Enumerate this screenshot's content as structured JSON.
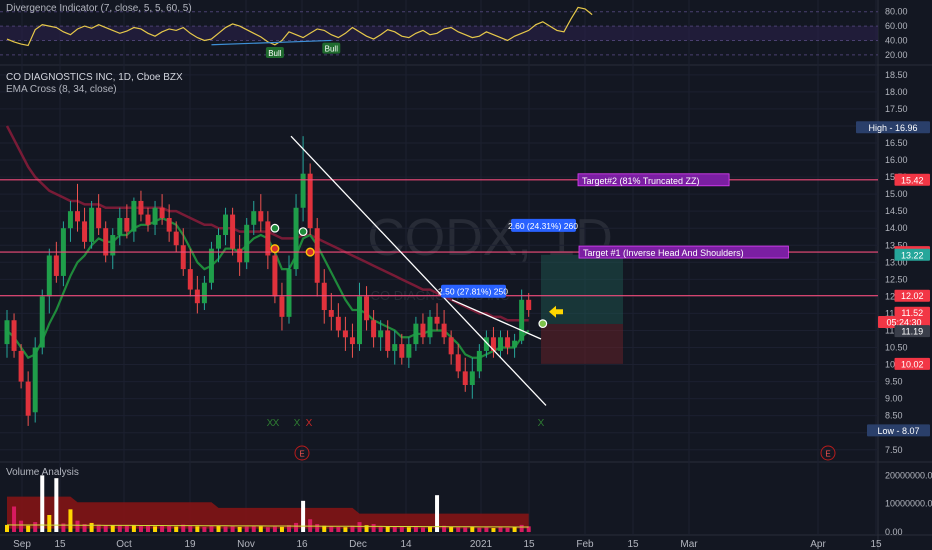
{
  "header": {
    "symbol_line": "CO DIAGNOSTICS INC, 1D, Cboe BZX",
    "ema_line": "EMA Cross (8, 34, close)"
  },
  "watermark": "CODX, 1D",
  "watermark_sub": "CO DIAGNOSTICS INC",
  "chart_data": [
    {
      "type": "line",
      "title": "Divergence Indicator (7, close, 5, 5, 60, 5)",
      "y_ticks": [
        "80.00",
        "60.00",
        "40.00",
        "20.00"
      ],
      "ylim": [
        10,
        88
      ],
      "series": [
        {
          "values": [
            42,
            38,
            35,
            33,
            55,
            62,
            60,
            58,
            52,
            48,
            56,
            60,
            57,
            62,
            58,
            54,
            50,
            53,
            58,
            56,
            50,
            46,
            52,
            56,
            54,
            58,
            50,
            44,
            40,
            42,
            50,
            58,
            63,
            60,
            55,
            50,
            45,
            38,
            34,
            40,
            52,
            48,
            44,
            50,
            56,
            54,
            48,
            44,
            50,
            58,
            52,
            46,
            42,
            48,
            55,
            52,
            46,
            44,
            50,
            54,
            48,
            50,
            56,
            58,
            52,
            48,
            44,
            46,
            52,
            48,
            44,
            40,
            46,
            50,
            54,
            62,
            66,
            60,
            54,
            52,
            70,
            86,
            84,
            76
          ]
        }
      ],
      "bull_labels": [
        "Bull",
        "Bull"
      ]
    },
    {
      "type": "candlestick",
      "x_ticks": [
        "Sep",
        "15",
        "Oct",
        "19",
        "Nov",
        "16",
        "Dec",
        "14",
        "2021",
        "15",
        "Feb",
        "15",
        "Mar",
        "Apr",
        "15"
      ],
      "y_ticks": [
        "18.50",
        "18.00",
        "17.50",
        "17.00",
        "16.50",
        "16.00",
        "15.50",
        "15.00",
        "14.50",
        "14.00",
        "13.50",
        "13.00",
        "12.50",
        "12.00",
        "11.50",
        "11.00",
        "10.50",
        "10.00",
        "9.50",
        "9.00",
        "8.50",
        "8.00",
        "7.50"
      ],
      "ylim": [
        7.2,
        18.7
      ],
      "ohlc": [
        [
          10.6,
          11.6,
          10.2,
          11.3
        ],
        [
          11.3,
          11.5,
          10.2,
          10.4
        ],
        [
          10.4,
          10.6,
          9.3,
          9.5
        ],
        [
          9.5,
          9.8,
          8.2,
          8.5
        ],
        [
          8.6,
          10.8,
          8.3,
          10.5
        ],
        [
          10.5,
          12.2,
          10.3,
          12.0
        ],
        [
          12.0,
          13.4,
          11.5,
          13.2
        ],
        [
          13.2,
          13.6,
          12.4,
          12.6
        ],
        [
          12.6,
          14.2,
          12.3,
          14.0
        ],
        [
          14.0,
          14.8,
          13.6,
          14.5
        ],
        [
          14.5,
          15.3,
          13.9,
          14.2
        ],
        [
          14.2,
          14.6,
          13.4,
          13.6
        ],
        [
          13.6,
          14.8,
          13.4,
          14.6
        ],
        [
          14.6,
          15.0,
          13.8,
          14.0
        ],
        [
          14.0,
          14.2,
          13.0,
          13.2
        ],
        [
          13.2,
          14.0,
          12.8,
          13.8
        ],
        [
          13.8,
          14.6,
          13.5,
          14.3
        ],
        [
          14.3,
          14.7,
          13.7,
          13.9
        ],
        [
          13.9,
          14.9,
          13.6,
          14.8
        ],
        [
          14.8,
          15.1,
          14.2,
          14.4
        ],
        [
          14.4,
          14.6,
          13.9,
          14.1
        ],
        [
          14.1,
          14.8,
          13.8,
          14.6
        ],
        [
          14.6,
          15.0,
          14.1,
          14.3
        ],
        [
          14.3,
          14.7,
          13.6,
          13.9
        ],
        [
          13.9,
          14.2,
          13.3,
          13.5
        ],
        [
          13.5,
          14.0,
          12.6,
          12.8
        ],
        [
          12.8,
          13.4,
          12.0,
          12.2
        ],
        [
          12.2,
          12.6,
          11.5,
          11.8
        ],
        [
          11.8,
          12.6,
          11.6,
          12.4
        ],
        [
          12.4,
          13.6,
          12.2,
          13.4
        ],
        [
          13.4,
          14.0,
          13.0,
          13.8
        ],
        [
          13.8,
          14.6,
          13.5,
          14.4
        ],
        [
          14.4,
          14.6,
          13.2,
          13.4
        ],
        [
          13.4,
          13.8,
          12.6,
          13.0
        ],
        [
          13.0,
          14.3,
          12.8,
          14.1
        ],
        [
          14.1,
          14.8,
          13.8,
          14.5
        ],
        [
          14.5,
          15.0,
          13.9,
          14.2
        ],
        [
          14.2,
          14.5,
          12.8,
          13.2
        ],
        [
          13.2,
          13.5,
          11.8,
          12.0
        ],
        [
          12.0,
          12.4,
          11.0,
          11.4
        ],
        [
          11.4,
          13.2,
          11.2,
          12.8
        ],
        [
          12.8,
          15.0,
          12.6,
          14.6
        ],
        [
          14.6,
          16.7,
          14.2,
          15.6
        ],
        [
          15.6,
          15.9,
          13.8,
          14.0
        ],
        [
          14.0,
          14.3,
          12.0,
          12.4
        ],
        [
          12.4,
          12.8,
          11.2,
          11.6
        ],
        [
          11.6,
          12.1,
          11.0,
          11.4
        ],
        [
          11.4,
          11.8,
          10.8,
          11.0
        ],
        [
          11.0,
          11.4,
          10.4,
          10.8
        ],
        [
          10.8,
          11.2,
          10.2,
          10.6
        ],
        [
          10.6,
          12.4,
          10.4,
          12.0
        ],
        [
          12.0,
          12.3,
          11.0,
          11.3
        ],
        [
          11.3,
          11.6,
          10.5,
          10.8
        ],
        [
          10.8,
          11.3,
          10.4,
          11.0
        ],
        [
          11.0,
          11.3,
          10.2,
          10.4
        ],
        [
          10.4,
          11.0,
          10.0,
          10.6
        ],
        [
          10.6,
          10.9,
          10.0,
          10.2
        ],
        [
          10.2,
          10.8,
          9.9,
          10.6
        ],
        [
          10.6,
          11.4,
          10.4,
          11.2
        ],
        [
          11.2,
          11.5,
          10.6,
          10.8
        ],
        [
          10.8,
          11.6,
          10.6,
          11.4
        ],
        [
          11.4,
          11.8,
          11.0,
          11.2
        ],
        [
          11.2,
          11.6,
          10.6,
          10.8
        ],
        [
          10.8,
          11.0,
          10.0,
          10.3
        ],
        [
          10.3,
          10.6,
          9.6,
          9.8
        ],
        [
          9.8,
          10.2,
          9.2,
          9.4
        ],
        [
          9.4,
          10.2,
          9.0,
          9.8
        ],
        [
          9.8,
          10.6,
          9.6,
          10.4
        ],
        [
          10.4,
          11.0,
          10.2,
          10.8
        ],
        [
          10.8,
          11.1,
          10.2,
          10.4
        ],
        [
          10.4,
          11.0,
          10.2,
          10.8
        ],
        [
          10.8,
          11.0,
          10.3,
          10.5
        ],
        [
          10.5,
          10.9,
          10.2,
          10.7
        ],
        [
          10.7,
          12.2,
          10.6,
          11.9
        ],
        [
          11.9,
          12.1,
          11.4,
          11.6
        ]
      ],
      "ema_fast": [
        11.0,
        10.8,
        10.5,
        10.2,
        10.3,
        10.7,
        11.2,
        11.6,
        12.1,
        12.6,
        13.0,
        13.2,
        13.5,
        13.7,
        13.6,
        13.6,
        13.8,
        13.8,
        14.0,
        14.1,
        14.1,
        14.2,
        14.3,
        14.2,
        14.1,
        13.8,
        13.4,
        13.0,
        12.8,
        12.9,
        13.1,
        13.4,
        13.4,
        13.3,
        13.5,
        13.7,
        13.8,
        13.7,
        13.3,
        12.8,
        12.8,
        13.2,
        13.7,
        13.8,
        13.5,
        13.1,
        12.7,
        12.3,
        11.9,
        11.6,
        11.6,
        11.5,
        11.3,
        11.2,
        11.1,
        11.0,
        10.8,
        10.8,
        10.9,
        10.9,
        11.0,
        11.0,
        11.0,
        10.8,
        10.6,
        10.3,
        10.2,
        10.2,
        10.3,
        10.4,
        10.5,
        10.5,
        10.5,
        10.8,
        11.0
      ],
      "ema_slow": [
        17.0,
        16.6,
        16.2,
        15.8,
        15.5,
        15.3,
        15.1,
        15.0,
        14.9,
        14.8,
        14.8,
        14.7,
        14.7,
        14.7,
        14.6,
        14.6,
        14.6,
        14.6,
        14.6,
        14.6,
        14.6,
        14.6,
        14.6,
        14.5,
        14.5,
        14.4,
        14.3,
        14.2,
        14.1,
        14.1,
        14.0,
        14.0,
        14.0,
        13.9,
        13.9,
        13.9,
        13.9,
        13.9,
        13.8,
        13.7,
        13.7,
        13.7,
        13.8,
        13.8,
        13.7,
        13.6,
        13.5,
        13.4,
        13.3,
        13.2,
        13.1,
        13.0,
        12.9,
        12.8,
        12.7,
        12.6,
        12.5,
        12.4,
        12.3,
        12.2,
        12.2,
        12.1,
        12.0,
        11.9,
        11.8,
        11.7,
        11.6,
        11.5,
        11.5,
        11.4,
        11.4,
        11.3,
        11.3,
        11.3,
        11.3
      ],
      "horizontal_lines": [
        {
          "price": 15.42,
          "label": "Target#2 (81% Truncated ZZ)"
        },
        {
          "price": 13.3,
          "label": "Target #1 (Inverse Head And Shoulders)"
        },
        {
          "price": 12.02,
          "label": ""
        }
      ],
      "price_labels": [
        {
          "text": "High - 16.96",
          "price": 16.96,
          "color": "#2a3f6a"
        },
        {
          "text": "15.42",
          "price": 15.42,
          "color": "#f23645"
        },
        {
          "text": "13.30",
          "price": 13.3,
          "color": "#f23645"
        },
        {
          "text": "13.22",
          "price": 13.22,
          "color": "#26a69a"
        },
        {
          "text": "12.02",
          "price": 12.02,
          "color": "#f23645"
        },
        {
          "text": "11.52",
          "price": 11.52,
          "color": "#f23645"
        },
        {
          "text": "05:24:30",
          "price": 11.25,
          "color": "#f23645"
        },
        {
          "text": "11.19",
          "price": 10.98,
          "color": "#3a3e4a"
        },
        {
          "text": "10.02",
          "price": 10.02,
          "color": "#f23645"
        },
        {
          "text": "Low - 8.07",
          "price": 8.07,
          "color": "#2a3f6a"
        }
      ],
      "measure_labels": [
        "2.50 (27.81%) 250",
        "2.60 (24.31%) 260"
      ],
      "signal_labels": [
        "X",
        "X",
        "X",
        "X",
        "X"
      ],
      "earnings_labels": [
        "E",
        "E"
      ]
    },
    {
      "type": "bar",
      "title": "Volume Analysis",
      "y_ticks": [
        "20000000.00",
        "10000000.00",
        "0.00"
      ],
      "ylim": [
        0,
        24000000
      ],
      "values": [
        2500000,
        9000000,
        4000000,
        2200000,
        3500000,
        20000000,
        6000000,
        19000000,
        3000000,
        8000000,
        4000000,
        2800000,
        3200000,
        2600000,
        2400000,
        2300000,
        2500000,
        2200000,
        2400000,
        2100000,
        2300000,
        2000000,
        2200000,
        2100000,
        1900000,
        2600000,
        2200000,
        2000000,
        1800000,
        2300000,
        2100000,
        1900000,
        2000000,
        1800000,
        1900000,
        2100000,
        2000000,
        1700000,
        1900000,
        1800000,
        2400000,
        3200000,
        11000000,
        4500000,
        2800000,
        2200000,
        2000000,
        1800000,
        1700000,
        2200000,
        3500000,
        2400000,
        2800000,
        2000000,
        1900000,
        2100000,
        1800000,
        1700000,
        1900000,
        1600000,
        2000000,
        13000000,
        2200000,
        1800000,
        1700000,
        1600000,
        1900000,
        1500000,
        1600000,
        1400000,
        1700000,
        1500000,
        1600000,
        2500000,
        2000000
      ]
    }
  ]
}
